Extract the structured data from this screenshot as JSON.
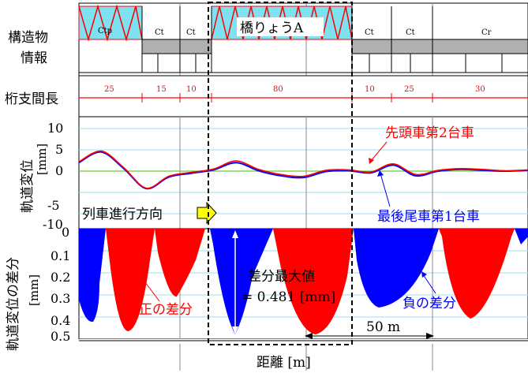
{
  "labels": {
    "structure_line1": "構造物",
    "structure_line2": "情報",
    "span_label": "桁支間長",
    "track_disp_label": "軌道変位",
    "track_disp_unit": "[mm]",
    "diff_label": "軌道変位の差分",
    "diff_unit": "[mm]",
    "x_axis_label": "距離 [m]"
  },
  "structures": [
    "Ctp",
    "Ct",
    "Ct",
    "橋りょうA",
    "Ct",
    "Ct",
    "Cr"
  ],
  "spans": [
    "25",
    "15",
    "10",
    "80",
    "10",
    "25",
    "30"
  ],
  "annotations": {
    "lead_car": "先頭車第2台車",
    "rear_car": "最後尾車第1台車",
    "direction": "列車進行方向",
    "max_diff_line1": "差分最大値",
    "max_diff_line2": "= 0.481 [mm]",
    "positive_diff": "正の差分",
    "negative_diff": "負の差分",
    "scale_bar": "50 m"
  },
  "colors": {
    "lead_car": "#ff0000",
    "rear_car": "#0000ff",
    "positive": "#ff0000",
    "negative": "#0000ff",
    "bridge_fill": "#7fe0f0",
    "embankment_fill": "#b0b0b0",
    "grid": "#9fdfef",
    "zero_line": "#66cc33"
  },
  "chart_data": [
    {
      "type": "line",
      "ylabel": "軌道変位 [mm]",
      "yticks": [
        "10",
        "5",
        "0",
        "-5",
        "-10"
      ],
      "ylim": [
        -10,
        10
      ],
      "series": [
        {
          "name": "先頭車第2台車",
          "x": [
            0,
            0.05,
            0.1,
            0.15,
            0.2,
            0.25,
            0.3,
            0.35,
            0.4,
            0.45,
            0.5,
            0.55,
            0.6,
            0.65,
            0.7,
            0.75,
            0.8,
            0.85,
            0.9,
            0.95,
            1.0
          ],
          "values": [
            2.2,
            4.7,
            0.8,
            -4.0,
            -1.2,
            -0.3,
            0.5,
            2.4,
            0.4,
            -0.8,
            -1.2,
            0.2,
            0.3,
            -0.2,
            1.7,
            -0.8,
            0.2,
            0.6,
            0.4,
            0.1,
            0.3
          ]
        },
        {
          "name": "最後尾車第1台車",
          "x": [
            0,
            0.05,
            0.1,
            0.15,
            0.2,
            0.25,
            0.3,
            0.35,
            0.4,
            0.45,
            0.5,
            0.55,
            0.6,
            0.65,
            0.7,
            0.75,
            0.8,
            0.85,
            0.9,
            0.95,
            1.0
          ],
          "values": [
            2.0,
            4.5,
            0.6,
            -4.1,
            -1.4,
            -0.5,
            0.3,
            2.0,
            0.1,
            -1.1,
            -1.5,
            -0.1,
            0.1,
            -0.4,
            1.4,
            -1.1,
            0.0,
            0.4,
            0.2,
            0.0,
            0.2
          ]
        }
      ]
    },
    {
      "type": "area",
      "ylabel": "軌道変位の差分 [mm]",
      "yticks": [
        "0",
        "0.1",
        "0.2",
        "0.3",
        "0.4",
        "0.5"
      ],
      "ylim": [
        0,
        0.5
      ],
      "series": [
        {
          "name": "正の差分",
          "segments": [
            [
              0.22,
              0.44
            ],
            [
              0.5,
              0.62
            ]
          ]
        },
        {
          "name": "負の差分",
          "segments": [
            [
              0.0,
              0.12
            ],
            [
              0.34,
              0.48
            ],
            [
              0.72,
              0.86
            ]
          ]
        }
      ],
      "max_value": 0.481
    }
  ]
}
